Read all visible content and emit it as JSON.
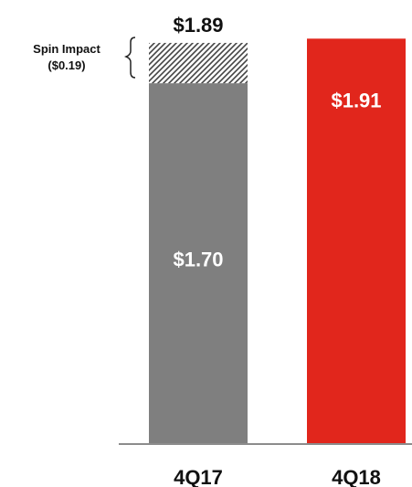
{
  "chart_data": {
    "type": "bar",
    "stacked": true,
    "categories": [
      "4Q17",
      "4Q18"
    ],
    "series": [
      {
        "values": [
          1.7,
          1.91
        ],
        "data_labels": [
          "$1.70",
          "$1.91"
        ],
        "colors": [
          "#7f7f7f",
          "#e1261c"
        ]
      },
      {
        "values": [
          0.19,
          0
        ],
        "colors": [
          "hatched-gray",
          "none"
        ]
      }
    ],
    "total_labels": [
      "$1.89",
      ""
    ],
    "annotation": {
      "line1": "Spin Impact",
      "line2": "($0.19)",
      "category": "4Q17",
      "series_index": 1
    },
    "ylim": [
      0,
      1.95
    ],
    "grid": false,
    "legend": "none",
    "title": "",
    "xlabel": "",
    "ylabel": ""
  }
}
